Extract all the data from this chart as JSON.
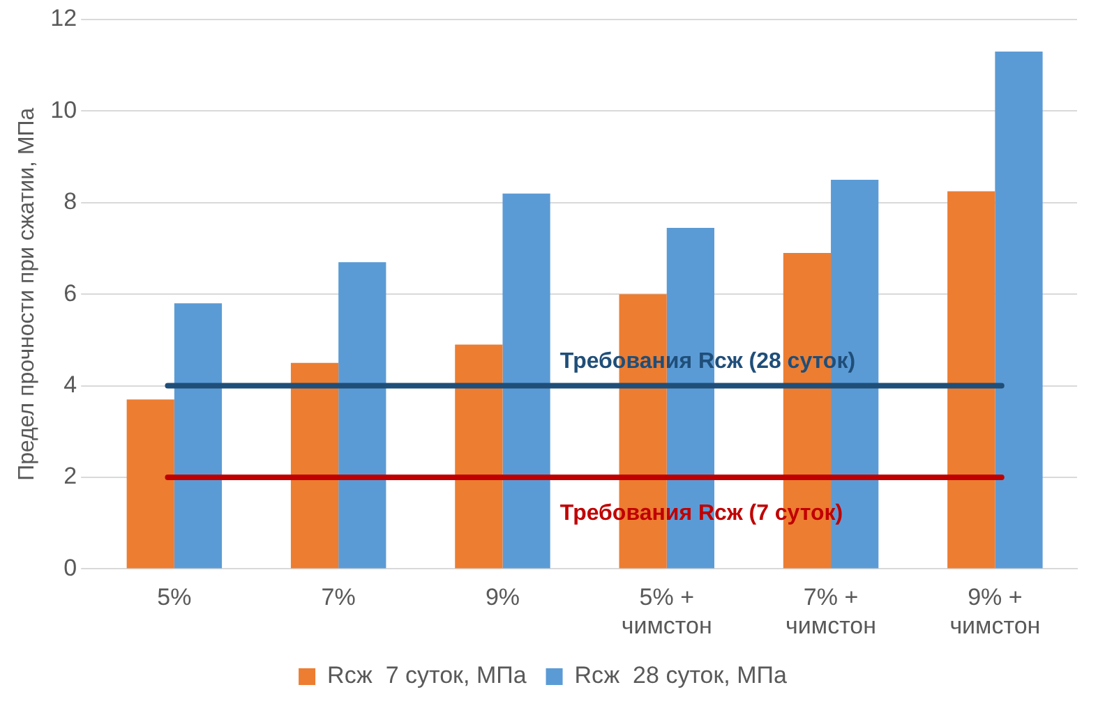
{
  "chart_data": {
    "type": "bar",
    "ylabel": "Предел прочности при сжатии, МПа",
    "categories": [
      "5%",
      "7%",
      "9%",
      "5% +\nчимстон",
      "7% +\nчимстон",
      "9% +\nчимстон"
    ],
    "series": [
      {
        "name": "Rсж  7 суток, МПа",
        "color": "#ed7d31",
        "values": [
          3.7,
          4.5,
          4.9,
          6.0,
          6.9,
          8.25
        ]
      },
      {
        "name": "Rсж  28 суток, МПа",
        "color": "#5b9bd5",
        "values": [
          5.8,
          6.7,
          8.2,
          7.45,
          8.5,
          11.3
        ]
      }
    ],
    "ylim": [
      0,
      12
    ],
    "yticks": [
      0,
      2,
      4,
      6,
      8,
      10,
      12
    ],
    "grid": "y",
    "legend": "bottom",
    "ref_lines": [
      {
        "axis": "y",
        "value": 4,
        "label": "Требования Rсж (28 суток)",
        "color": "#1f4e79"
      },
      {
        "axis": "y",
        "value": 2,
        "label": "Требования Rсж (7 суток)",
        "color": "#c00000"
      }
    ]
  }
}
